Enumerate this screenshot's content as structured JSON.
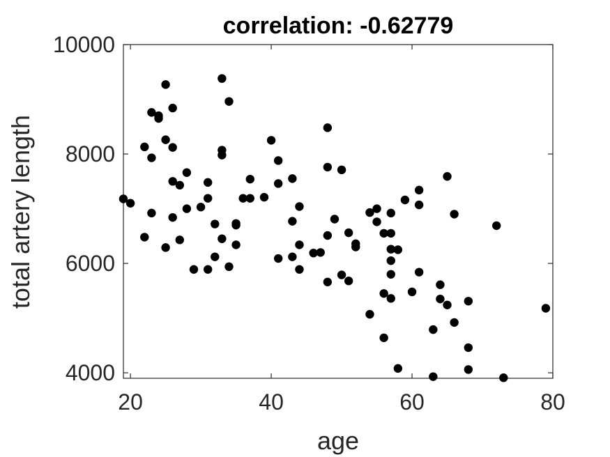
{
  "chart_data": {
    "type": "scatter",
    "title": "correlation: -0.62779",
    "xlabel": "age",
    "ylabel": "total artery length",
    "xlim": [
      19,
      80
    ],
    "ylim": [
      3900,
      10000
    ],
    "xticks": [
      20,
      40,
      60,
      80
    ],
    "yticks": [
      4000,
      6000,
      8000,
      10000
    ],
    "grid": false,
    "marker_color": "#000000",
    "points": [
      [
        19,
        7180
      ],
      [
        20,
        7100
      ],
      [
        22,
        8130
      ],
      [
        22,
        6480
      ],
      [
        23,
        8760
      ],
      [
        23,
        7930
      ],
      [
        23,
        6920
      ],
      [
        24,
        8700
      ],
      [
        24,
        8650
      ],
      [
        25,
        9270
      ],
      [
        25,
        8260
      ],
      [
        25,
        6290
      ],
      [
        26,
        8840
      ],
      [
        26,
        8120
      ],
      [
        26,
        7500
      ],
      [
        26,
        6840
      ],
      [
        27,
        7430
      ],
      [
        27,
        6430
      ],
      [
        28,
        7660
      ],
      [
        28,
        7000
      ],
      [
        29,
        5890
      ],
      [
        30,
        7030
      ],
      [
        31,
        7480
      ],
      [
        31,
        7190
      ],
      [
        31,
        5890
      ],
      [
        32,
        6720
      ],
      [
        32,
        6120
      ],
      [
        33,
        9380
      ],
      [
        33,
        8070
      ],
      [
        33,
        7980
      ],
      [
        33,
        6450
      ],
      [
        34,
        8960
      ],
      [
        34,
        5940
      ],
      [
        35,
        6730
      ],
      [
        35,
        6700
      ],
      [
        35,
        6340
      ],
      [
        36,
        7190
      ],
      [
        37,
        7540
      ],
      [
        37,
        7190
      ],
      [
        39,
        7210
      ],
      [
        40,
        8250
      ],
      [
        41,
        7880
      ],
      [
        41,
        7460
      ],
      [
        41,
        6090
      ],
      [
        43,
        7550
      ],
      [
        43,
        6770
      ],
      [
        43,
        6120
      ],
      [
        44,
        7040
      ],
      [
        44,
        6340
      ],
      [
        44,
        5890
      ],
      [
        46,
        6190
      ],
      [
        47,
        6200
      ],
      [
        48,
        8480
      ],
      [
        48,
        7760
      ],
      [
        48,
        6510
      ],
      [
        48,
        5660
      ],
      [
        49,
        6810
      ],
      [
        50,
        7710
      ],
      [
        50,
        5790
      ],
      [
        51,
        6560
      ],
      [
        51,
        5680
      ],
      [
        52,
        6360
      ],
      [
        52,
        6300
      ],
      [
        54,
        6930
      ],
      [
        54,
        5070
      ],
      [
        55,
        7000
      ],
      [
        55,
        6760
      ],
      [
        56,
        6550
      ],
      [
        56,
        5450
      ],
      [
        56,
        4640
      ],
      [
        57,
        6920
      ],
      [
        57,
        6550
      ],
      [
        57,
        6260
      ],
      [
        57,
        6050
      ],
      [
        57,
        5800
      ],
      [
        57,
        5360
      ],
      [
        58,
        6250
      ],
      [
        58,
        4080
      ],
      [
        59,
        7160
      ],
      [
        60,
        5480
      ],
      [
        61,
        7340
      ],
      [
        61,
        7070
      ],
      [
        61,
        5840
      ],
      [
        63,
        4790
      ],
      [
        63,
        3930
      ],
      [
        64,
        5610
      ],
      [
        64,
        5350
      ],
      [
        65,
        7590
      ],
      [
        65,
        5240
      ],
      [
        66,
        6900
      ],
      [
        66,
        4920
      ],
      [
        68,
        5310
      ],
      [
        68,
        4460
      ],
      [
        68,
        4060
      ],
      [
        72,
        6690
      ],
      [
        73,
        3910
      ],
      [
        79,
        5180
      ]
    ]
  }
}
